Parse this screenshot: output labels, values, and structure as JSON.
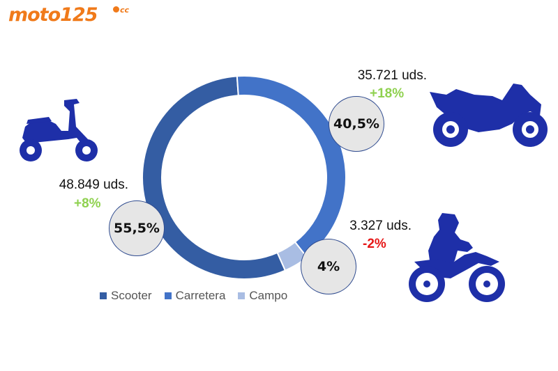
{
  "brand": {
    "logo_text": "moto125",
    "logo_suffix": "cc",
    "color": "#f07a1a"
  },
  "chart_data": {
    "type": "pie",
    "donut": true,
    "categories": [
      "Scooter",
      "Carretera",
      "Campo"
    ],
    "values": [
      55.5,
      40.5,
      4
    ],
    "value_labels": [
      "55,5%",
      "40,5%",
      "4%"
    ],
    "units_sold": [
      "48.849 uds.",
      "35.721 uds.",
      "3.327 uds."
    ],
    "change": [
      "+8%",
      "+18%",
      "-2%"
    ],
    "colors": [
      "#345da3",
      "#4273c8",
      "#a9bde3"
    ],
    "change_colors": [
      "#8fd14f",
      "#8fd14f",
      "#e61717"
    ],
    "legend": [
      "Scooter",
      "Carretera",
      "Campo"
    ],
    "legend_position": "bottom"
  },
  "icons": [
    "scooter-icon",
    "sport-bike-icon",
    "dirt-bike-rider-icon"
  ]
}
